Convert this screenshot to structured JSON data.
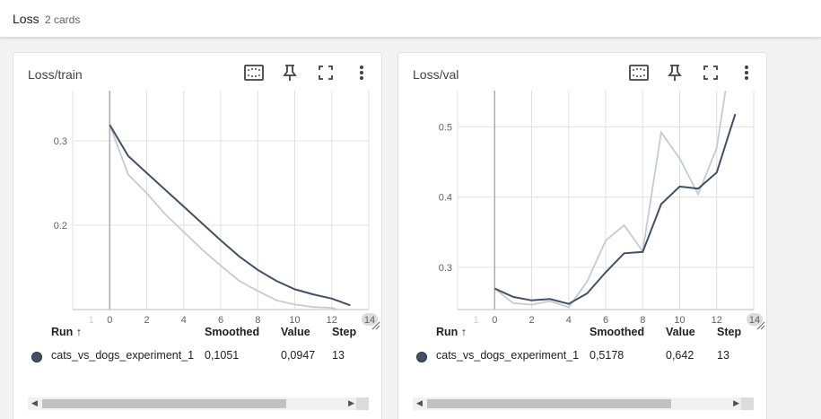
{
  "header": {
    "title": "Loss",
    "count": "2 cards"
  },
  "table_headers": {
    "run": "Run ↑",
    "smoothed": "Smoothed",
    "value": "Value",
    "step": "Step"
  },
  "cards": [
    {
      "title": "Loss/train",
      "run": "cats_vs_dogs_experiment_1",
      "smoothed": "0,1051",
      "value": "0,0947",
      "step": "13"
    },
    {
      "title": "Loss/val",
      "run": "cats_vs_dogs_experiment_1",
      "smoothed": "0,5178",
      "value": "0,642",
      "step": "13"
    }
  ],
  "colors": {
    "smoothed": "#425066",
    "raw": "#c5cad3",
    "grid": "#e0e0e0",
    "run_dot": "#425066"
  },
  "icons": [
    "fit-domain-icon",
    "pin-icon",
    "fullscreen-icon",
    "more-vert-icon",
    "resize-grip-icon"
  ],
  "chart_data": [
    {
      "type": "line",
      "title": "Loss/train",
      "x_ticks": [
        "1",
        "0",
        "2",
        "4",
        "6",
        "8",
        "10",
        "12",
        "14"
      ],
      "y_ticks": [
        "0.3",
        "0.2"
      ],
      "xlim": [
        -2,
        14
      ],
      "ylim": [
        0.1,
        0.4
      ],
      "series": [
        {
          "name": "",
          "role": "raw",
          "x": [
            0,
            1,
            2,
            3,
            4,
            5,
            6,
            7,
            8,
            9,
            10,
            11,
            12,
            13
          ],
          "values": [
            0.319,
            0.26,
            0.238,
            0.213,
            0.192,
            0.171,
            0.152,
            0.134,
            0.122,
            0.111,
            0.106,
            0.103,
            0.102,
            0.095
          ]
        },
        {
          "name": "",
          "role": "smoothed",
          "x": [
            0,
            1,
            2,
            3,
            4,
            5,
            6,
            7,
            8,
            9,
            10,
            11,
            12,
            13
          ],
          "values": [
            0.319,
            0.282,
            0.262,
            0.242,
            0.222,
            0.202,
            0.182,
            0.163,
            0.147,
            0.134,
            0.124,
            0.118,
            0.113,
            0.105
          ]
        }
      ]
    },
    {
      "type": "line",
      "title": "Loss/val",
      "x_ticks": [
        "1",
        "0",
        "2",
        "4",
        "6",
        "8",
        "10",
        "12",
        "14"
      ],
      "y_ticks": [
        "0.5",
        "0.4",
        "0.3"
      ],
      "xlim": [
        -2,
        14
      ],
      "ylim": [
        0.24,
        0.6
      ],
      "series": [
        {
          "name": "",
          "role": "raw",
          "x": [
            0,
            1,
            2,
            3,
            4,
            5,
            6,
            7,
            8,
            9,
            10,
            11,
            12,
            13
          ],
          "values": [
            0.27,
            0.249,
            0.247,
            0.252,
            0.243,
            0.28,
            0.338,
            0.36,
            0.323,
            0.492,
            0.455,
            0.404,
            0.47,
            0.642
          ]
        },
        {
          "name": "",
          "role": "smoothed",
          "x": [
            0,
            1,
            2,
            3,
            4,
            5,
            6,
            7,
            8,
            9,
            10,
            11,
            12,
            13
          ],
          "values": [
            0.27,
            0.258,
            0.253,
            0.255,
            0.248,
            0.263,
            0.293,
            0.32,
            0.322,
            0.39,
            0.415,
            0.412,
            0.435,
            0.518
          ]
        }
      ]
    }
  ]
}
